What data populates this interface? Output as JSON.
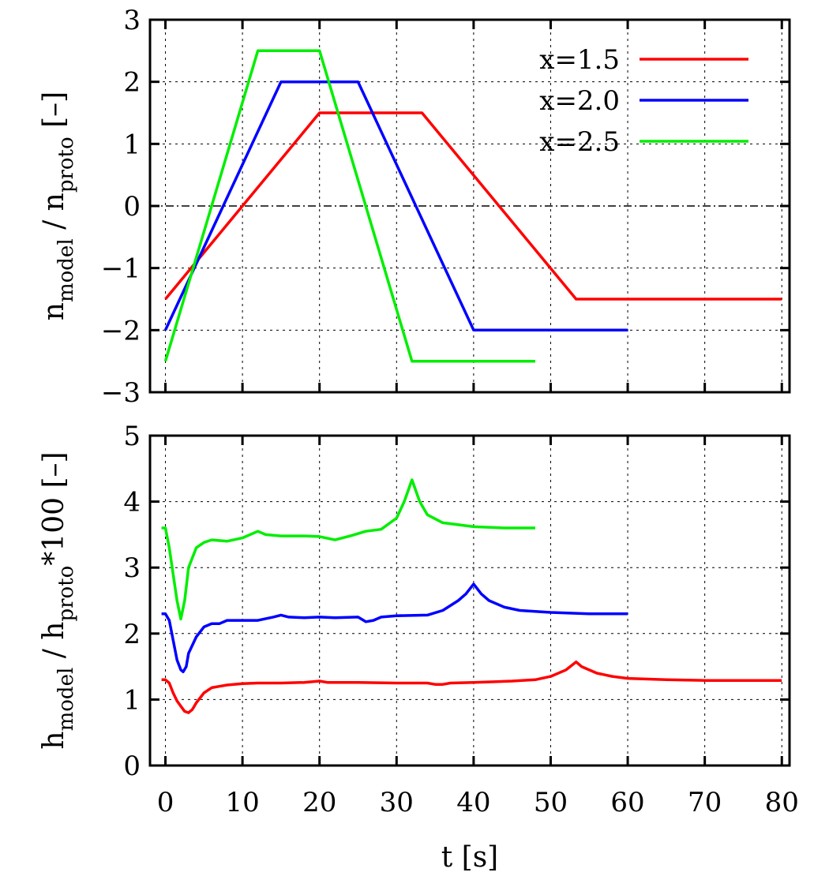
{
  "colors": {
    "x1_5": "#ff0000",
    "x2_0": "#0000ff",
    "x2_5": "#00ee00"
  },
  "chart_data": [
    {
      "type": "line",
      "ylabel_main": "n",
      "ylabel_sub1": "model",
      "ylabel_mid": " / n",
      "ylabel_sub2": "proto",
      "ylabel_tail": " [–]",
      "xlim": [
        -2,
        81
      ],
      "ylim": [
        -3,
        3
      ],
      "yticks": [
        "3",
        "2",
        "1",
        "0",
        "−1",
        "−2",
        "−3"
      ],
      "ytick_values": [
        3,
        2,
        1,
        0,
        -1,
        -2,
        -3
      ],
      "xtick_values": [
        0,
        10,
        20,
        30,
        40,
        50,
        60,
        70,
        80
      ],
      "grid": true,
      "zero_line": true,
      "legend_position": "top-right",
      "series": [
        {
          "name": "x=1.5",
          "color": "#ff0000",
          "points": [
            [
              0,
              -1.5
            ],
            [
              20,
              1.5
            ],
            [
              33.3,
              1.5
            ],
            [
              53.3,
              -1.5
            ],
            [
              80,
              -1.5
            ]
          ]
        },
        {
          "name": "x=2.0",
          "color": "#0000ff",
          "points": [
            [
              0,
              -2
            ],
            [
              15,
              2
            ],
            [
              25,
              2
            ],
            [
              40,
              -2
            ],
            [
              60,
              -2
            ]
          ]
        },
        {
          "name": "x=2.5",
          "color": "#00ee00",
          "points": [
            [
              0,
              -2.5
            ],
            [
              12,
              2.5
            ],
            [
              20,
              2.5
            ],
            [
              32,
              -2.5
            ],
            [
              48,
              -2.5
            ]
          ]
        }
      ]
    },
    {
      "type": "line",
      "xlabel": "t [s]",
      "ylabel_main": "h",
      "ylabel_sub1": "model",
      "ylabel_mid": " / h",
      "ylabel_sub2": "proto",
      "ylabel_tail": "*100 [–]",
      "xlim": [
        -2,
        81
      ],
      "ylim": [
        0,
        5
      ],
      "yticks": [
        "5",
        "4",
        "3",
        "2",
        "1",
        "0"
      ],
      "ytick_values": [
        5,
        4,
        3,
        2,
        1,
        0
      ],
      "xticks": [
        "0",
        "10",
        "20",
        "30",
        "40",
        "50",
        "60",
        "70",
        "80"
      ],
      "xtick_values": [
        0,
        10,
        20,
        30,
        40,
        50,
        60,
        70,
        80
      ],
      "grid": true,
      "series": [
        {
          "name": "x=1.5",
          "color": "#ff0000",
          "points": [
            [
              -0.5,
              1.3
            ],
            [
              0,
              1.3
            ],
            [
              0.5,
              1.25
            ],
            [
              1,
              1.1
            ],
            [
              1.5,
              0.98
            ],
            [
              2,
              0.9
            ],
            [
              2.5,
              0.82
            ],
            [
              3,
              0.8
            ],
            [
              3.5,
              0.85
            ],
            [
              4,
              0.95
            ],
            [
              5,
              1.1
            ],
            [
              6,
              1.18
            ],
            [
              7,
              1.2
            ],
            [
              8,
              1.22
            ],
            [
              10,
              1.24
            ],
            [
              12,
              1.25
            ],
            [
              15,
              1.25
            ],
            [
              18,
              1.26
            ],
            [
              20,
              1.28
            ],
            [
              21,
              1.26
            ],
            [
              25,
              1.26
            ],
            [
              30,
              1.25
            ],
            [
              34,
              1.25
            ],
            [
              35,
              1.23
            ],
            [
              36,
              1.23
            ],
            [
              37,
              1.25
            ],
            [
              40,
              1.26
            ],
            [
              45,
              1.28
            ],
            [
              48,
              1.3
            ],
            [
              50,
              1.35
            ],
            [
              52,
              1.45
            ],
            [
              53.3,
              1.57
            ],
            [
              54,
              1.5
            ],
            [
              56,
              1.4
            ],
            [
              58,
              1.35
            ],
            [
              60,
              1.32
            ],
            [
              65,
              1.3
            ],
            [
              70,
              1.29
            ],
            [
              80,
              1.29
            ]
          ]
        },
        {
          "name": "x=2.0",
          "color": "#0000ff",
          "points": [
            [
              -0.5,
              2.3
            ],
            [
              0,
              2.3
            ],
            [
              0.5,
              2.2
            ],
            [
              1,
              1.9
            ],
            [
              1.5,
              1.6
            ],
            [
              2,
              1.45
            ],
            [
              2.3,
              1.42
            ],
            [
              2.7,
              1.5
            ],
            [
              3,
              1.7
            ],
            [
              4,
              1.95
            ],
            [
              5,
              2.1
            ],
            [
              6,
              2.15
            ],
            [
              7,
              2.15
            ],
            [
              8,
              2.2
            ],
            [
              10,
              2.2
            ],
            [
              12,
              2.2
            ],
            [
              14,
              2.25
            ],
            [
              15,
              2.28
            ],
            [
              16,
              2.25
            ],
            [
              18,
              2.24
            ],
            [
              20,
              2.25
            ],
            [
              22,
              2.24
            ],
            [
              25,
              2.25
            ],
            [
              26,
              2.18
            ],
            [
              27,
              2.2
            ],
            [
              28,
              2.25
            ],
            [
              30,
              2.27
            ],
            [
              34,
              2.28
            ],
            [
              36,
              2.35
            ],
            [
              38,
              2.5
            ],
            [
              39,
              2.6
            ],
            [
              40,
              2.75
            ],
            [
              41,
              2.6
            ],
            [
              42,
              2.5
            ],
            [
              44,
              2.4
            ],
            [
              46,
              2.35
            ],
            [
              50,
              2.32
            ],
            [
              55,
              2.3
            ],
            [
              60,
              2.3
            ]
          ]
        },
        {
          "name": "x=2.5",
          "color": "#00ee00",
          "points": [
            [
              -0.5,
              3.6
            ],
            [
              0,
              3.6
            ],
            [
              0.5,
              3.3
            ],
            [
              1,
              2.9
            ],
            [
              1.5,
              2.5
            ],
            [
              2,
              2.22
            ],
            [
              2.5,
              2.5
            ],
            [
              3,
              3.0
            ],
            [
              4,
              3.3
            ],
            [
              5,
              3.38
            ],
            [
              6,
              3.42
            ],
            [
              8,
              3.4
            ],
            [
              10,
              3.45
            ],
            [
              12,
              3.55
            ],
            [
              13,
              3.5
            ],
            [
              15,
              3.48
            ],
            [
              18,
              3.48
            ],
            [
              20,
              3.47
            ],
            [
              22,
              3.42
            ],
            [
              24,
              3.48
            ],
            [
              26,
              3.55
            ],
            [
              28,
              3.58
            ],
            [
              30,
              3.75
            ],
            [
              31,
              4.0
            ],
            [
              32,
              4.33
            ],
            [
              33,
              4.0
            ],
            [
              34,
              3.8
            ],
            [
              36,
              3.68
            ],
            [
              40,
              3.62
            ],
            [
              44,
              3.6
            ],
            [
              48,
              3.6
            ]
          ]
        }
      ]
    }
  ]
}
